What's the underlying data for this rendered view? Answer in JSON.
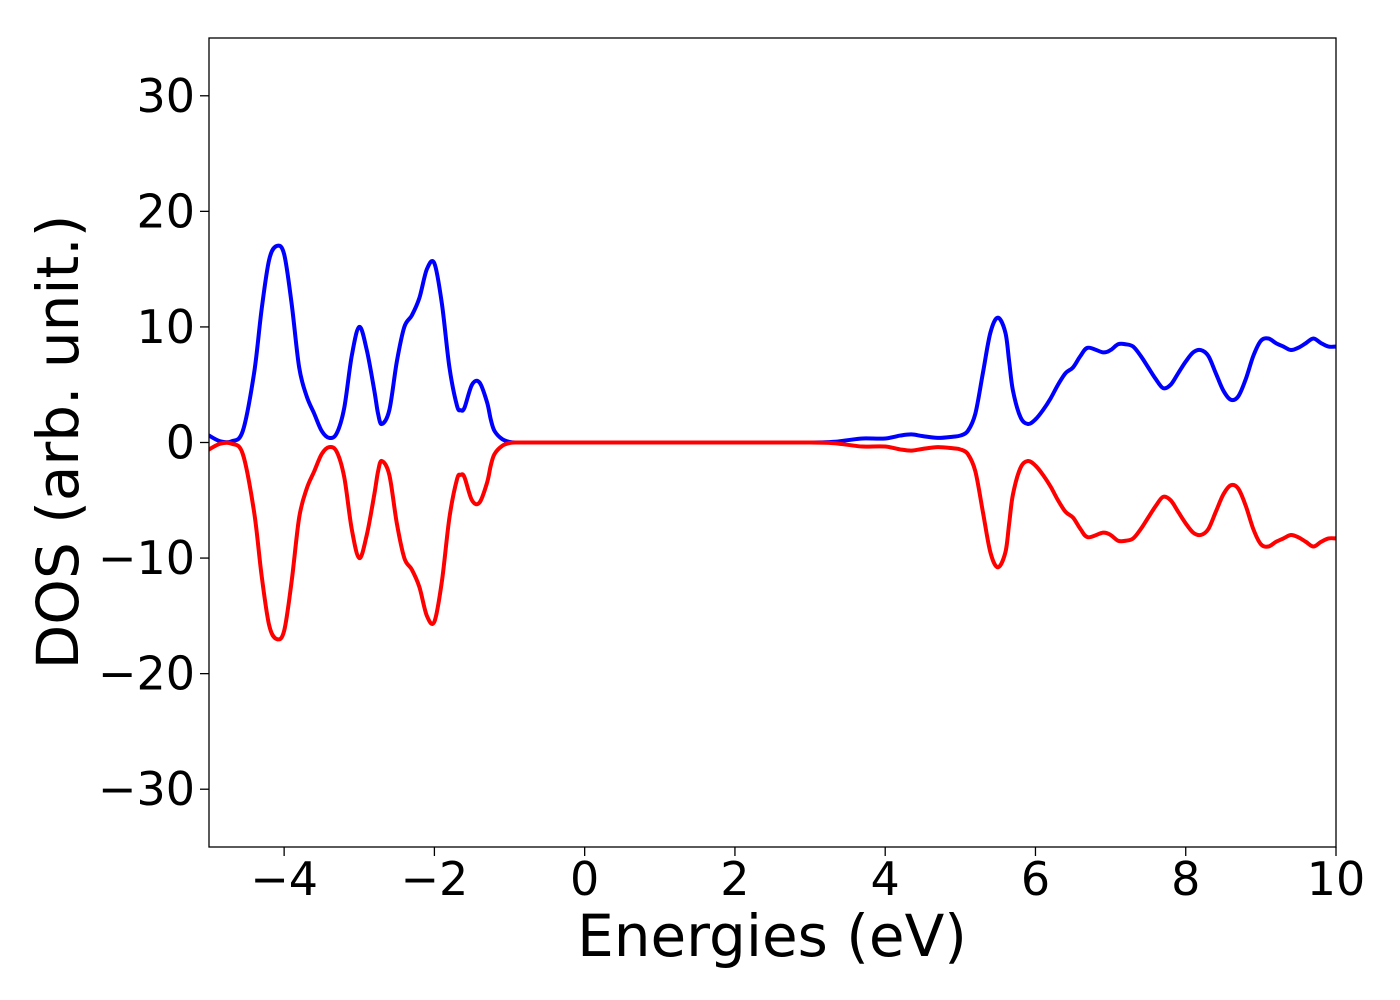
{
  "chart_data": {
    "type": "line",
    "title": "",
    "xlabel": "Energies (eV)",
    "ylabel": "DOS (arb. unit.)",
    "xlim": [
      -5,
      10
    ],
    "ylim": [
      -35,
      35
    ],
    "grid": false,
    "legend": "none",
    "x_ticks": [
      -4,
      -2,
      0,
      2,
      4,
      6,
      8,
      10
    ],
    "y_ticks": [
      -30,
      -20,
      -10,
      0,
      10,
      20,
      30
    ],
    "x_tick_labels": [
      "−4",
      "−2",
      "0",
      "2",
      "4",
      "6",
      "8",
      "10"
    ],
    "y_tick_labels": [
      "−30",
      "−20",
      "−10",
      "0",
      "10",
      "20",
      "30"
    ],
    "series": [
      {
        "color": "#0000ff",
        "x": [
          -5.0,
          -4.85,
          -4.7,
          -4.55,
          -4.4,
          -4.3,
          -4.2,
          -4.1,
          -4.0,
          -3.9,
          -3.8,
          -3.7,
          -3.6,
          -3.5,
          -3.4,
          -3.3,
          -3.2,
          -3.1,
          -3.0,
          -2.9,
          -2.8,
          -2.75,
          -2.7,
          -2.6,
          -2.5,
          -2.4,
          -2.3,
          -2.2,
          -2.1,
          -2.0,
          -1.9,
          -1.8,
          -1.7,
          -1.65,
          -1.6,
          -1.5,
          -1.4,
          -1.3,
          -1.25,
          -1.2,
          -1.1,
          -1.0,
          -0.9,
          -0.8,
          -0.7,
          -0.6,
          -0.5,
          0.0,
          1.0,
          2.0,
          3.0,
          3.3,
          3.5,
          3.7,
          4.0,
          4.2,
          4.35,
          4.5,
          4.7,
          4.9,
          5.0,
          5.1,
          5.2,
          5.3,
          5.4,
          5.5,
          5.6,
          5.65,
          5.7,
          5.8,
          5.9,
          6.0,
          6.1,
          6.2,
          6.3,
          6.4,
          6.5,
          6.6,
          6.7,
          6.9,
          7.0,
          7.1,
          7.2,
          7.3,
          7.4,
          7.5,
          7.6,
          7.7,
          7.8,
          7.9,
          8.0,
          8.1,
          8.2,
          8.3,
          8.4,
          8.5,
          8.6,
          8.7,
          8.8,
          8.9,
          9.0,
          9.1,
          9.2,
          9.3,
          9.4,
          9.5,
          9.6,
          9.7,
          9.8,
          9.9,
          10.0
        ],
        "y": [
          0.6,
          0.1,
          0.1,
          1.0,
          6.0,
          11.5,
          15.8,
          17.0,
          16.3,
          12.0,
          6.5,
          4.0,
          2.5,
          1.0,
          0.4,
          0.8,
          3.0,
          7.5,
          10.0,
          8.0,
          4.5,
          2.5,
          1.6,
          2.8,
          7.0,
          10.0,
          11.0,
          12.5,
          15.0,
          15.5,
          12.0,
          6.5,
          3.2,
          2.8,
          3.0,
          5.0,
          5.2,
          3.5,
          2.0,
          1.0,
          0.3,
          0.05,
          0.0,
          0.0,
          0.0,
          0.0,
          0.0,
          0.0,
          0.0,
          0.0,
          0.0,
          0.05,
          0.2,
          0.35,
          0.35,
          0.6,
          0.7,
          0.55,
          0.4,
          0.5,
          0.6,
          1.0,
          2.5,
          6.0,
          9.5,
          10.8,
          9.5,
          7.0,
          4.5,
          2.2,
          1.6,
          2.0,
          2.8,
          3.8,
          5.0,
          6.0,
          6.5,
          7.5,
          8.2,
          7.8,
          8.0,
          8.5,
          8.5,
          8.3,
          7.5,
          6.5,
          5.5,
          4.7,
          5.0,
          6.0,
          7.0,
          7.8,
          8.0,
          7.5,
          6.0,
          4.5,
          3.7,
          4.0,
          5.5,
          7.5,
          8.8,
          9.0,
          8.6,
          8.3,
          8.0,
          8.2,
          8.6,
          9.0,
          8.6,
          8.3,
          8.3
        ]
      },
      {
        "color": "#ff0000",
        "x": [
          -5.0,
          -4.85,
          -4.7,
          -4.55,
          -4.4,
          -4.3,
          -4.2,
          -4.1,
          -4.0,
          -3.9,
          -3.8,
          -3.7,
          -3.6,
          -3.5,
          -3.4,
          -3.3,
          -3.2,
          -3.1,
          -3.0,
          -2.9,
          -2.8,
          -2.75,
          -2.7,
          -2.6,
          -2.5,
          -2.4,
          -2.3,
          -2.2,
          -2.1,
          -2.0,
          -1.9,
          -1.8,
          -1.7,
          -1.65,
          -1.6,
          -1.5,
          -1.4,
          -1.3,
          -1.25,
          -1.2,
          -1.1,
          -1.0,
          -0.9,
          -0.8,
          -0.7,
          -0.6,
          -0.5,
          0.0,
          1.0,
          2.0,
          3.0,
          3.3,
          3.5,
          3.7,
          4.0,
          4.2,
          4.35,
          4.5,
          4.7,
          4.9,
          5.0,
          5.1,
          5.2,
          5.3,
          5.4,
          5.5,
          5.6,
          5.65,
          5.7,
          5.8,
          5.9,
          6.0,
          6.1,
          6.2,
          6.3,
          6.4,
          6.5,
          6.6,
          6.7,
          6.9,
          7.0,
          7.1,
          7.2,
          7.3,
          7.4,
          7.5,
          7.6,
          7.7,
          7.8,
          7.9,
          8.0,
          8.1,
          8.2,
          8.3,
          8.4,
          8.5,
          8.6,
          8.7,
          8.8,
          8.9,
          9.0,
          9.1,
          9.2,
          9.3,
          9.4,
          9.5,
          9.6,
          9.7,
          9.8,
          9.9,
          10.0
        ],
        "y": [
          -0.6,
          -0.1,
          -0.1,
          -1.0,
          -6.0,
          -11.5,
          -15.8,
          -17.0,
          -16.3,
          -12.0,
          -6.5,
          -4.0,
          -2.5,
          -1.0,
          -0.4,
          -0.8,
          -3.0,
          -7.5,
          -10.0,
          -8.0,
          -4.5,
          -2.5,
          -1.6,
          -2.8,
          -7.0,
          -10.0,
          -11.0,
          -12.5,
          -15.0,
          -15.5,
          -12.0,
          -6.5,
          -3.2,
          -2.8,
          -3.0,
          -5.0,
          -5.2,
          -3.5,
          -2.0,
          -1.0,
          -0.3,
          -0.05,
          0.0,
          0.0,
          0.0,
          0.0,
          0.0,
          0.0,
          0.0,
          0.0,
          0.0,
          -0.05,
          -0.2,
          -0.35,
          -0.35,
          -0.6,
          -0.7,
          -0.55,
          -0.4,
          -0.5,
          -0.6,
          -1.0,
          -2.5,
          -6.0,
          -9.5,
          -10.8,
          -9.5,
          -7.0,
          -4.5,
          -2.2,
          -1.6,
          -2.0,
          -2.8,
          -3.8,
          -5.0,
          -6.0,
          -6.5,
          -7.5,
          -8.2,
          -7.8,
          -8.0,
          -8.5,
          -8.5,
          -8.3,
          -7.5,
          -6.5,
          -5.5,
          -4.7,
          -5.0,
          -6.0,
          -7.0,
          -7.8,
          -8.0,
          -7.5,
          -6.0,
          -4.5,
          -3.7,
          -4.0,
          -5.5,
          -7.5,
          -8.8,
          -9.0,
          -8.6,
          -8.3,
          -8.0,
          -8.2,
          -8.6,
          -9.0,
          -8.6,
          -8.3,
          -8.3
        ]
      }
    ]
  }
}
